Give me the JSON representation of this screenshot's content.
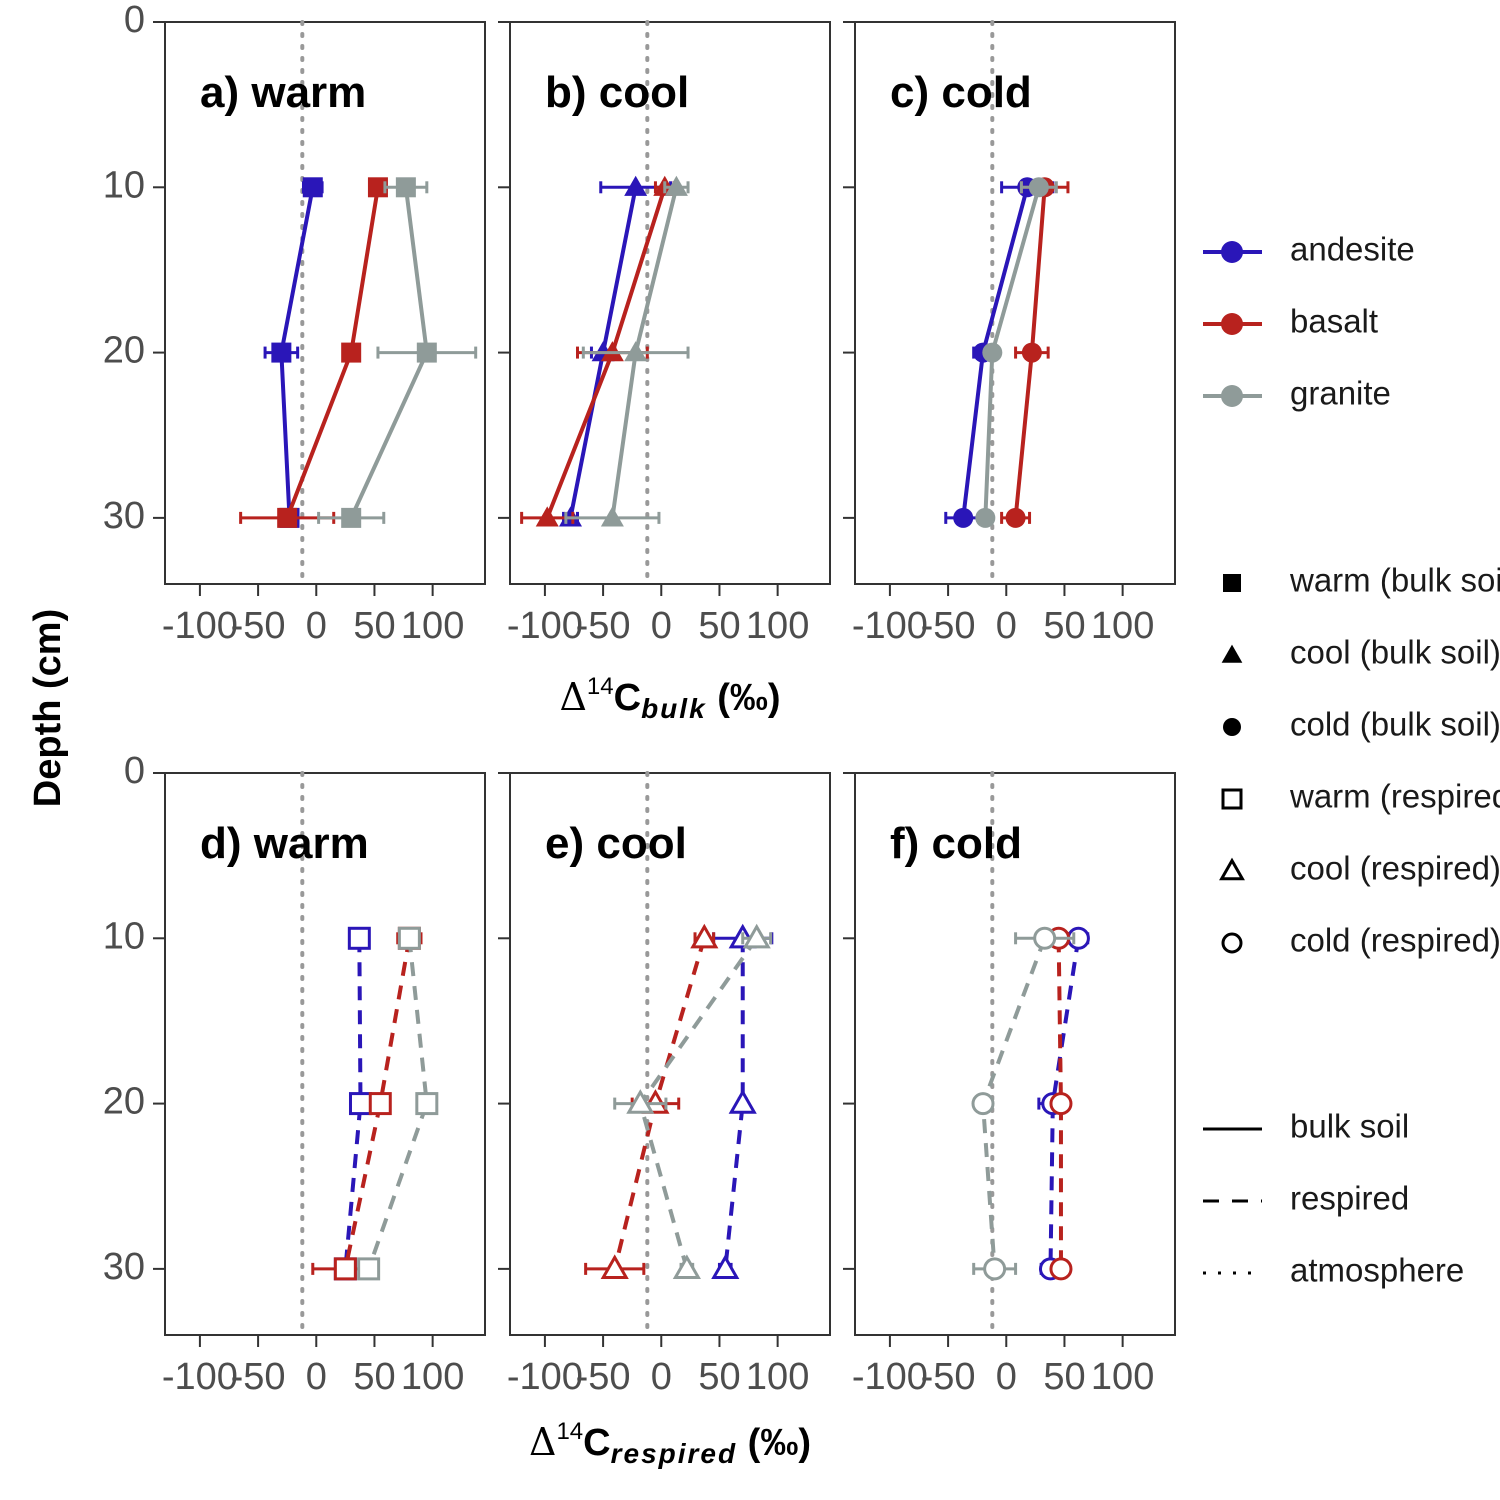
{
  "y_axis_label": "Depth (cm)",
  "x_axis_label_top": {
    "delta": "Δ",
    "sup": "14",
    "c": "C",
    "sub": "bulk",
    "unit": " (‰)"
  },
  "x_axis_label_bottom": {
    "delta": "Δ",
    "sup": "14",
    "c": "C",
    "sub": "respired",
    "unit": " (‰)"
  },
  "colors": {
    "andesite": "#2a16b8",
    "basalt": "#b8221e",
    "granite": "#8f9b99",
    "atmosphere": "#999999"
  },
  "legend": {
    "material": [
      {
        "label": "andesite",
        "color": "#2a16b8"
      },
      {
        "label": "basalt",
        "color": "#b8221e"
      },
      {
        "label": "granite",
        "color": "#8f9b99"
      }
    ],
    "shape": [
      {
        "label": "warm (bulk soil)",
        "shape": "square",
        "filled": true
      },
      {
        "label": "cool (bulk soil)",
        "shape": "triangle",
        "filled": true
      },
      {
        "label": "cold (bulk soil)",
        "shape": "circle",
        "filled": true
      },
      {
        "label": "warm (respired)",
        "shape": "square",
        "filled": false
      },
      {
        "label": "cool (respired)",
        "shape": "triangle",
        "filled": false
      },
      {
        "label": "cold (respired)",
        "shape": "circle",
        "filled": false
      }
    ],
    "linetype": [
      {
        "label": "bulk soil",
        "dash": "solid"
      },
      {
        "label": "respired",
        "dash": "dashed"
      },
      {
        "label": "atmosphere",
        "dash": "dotted"
      }
    ]
  },
  "chart_data": [
    {
      "id": "a",
      "title": "a) warm",
      "type": "line",
      "x_measure": "bulk",
      "marker": "square",
      "filled": true,
      "dash": "solid",
      "xlim": [
        -130,
        145
      ],
      "ylim": [
        34,
        0
      ],
      "xticks": [
        -100,
        -50,
        0,
        50,
        100
      ],
      "xtick_labels": [
        "-100",
        "-50",
        "0",
        "50",
        "100"
      ],
      "yticks": [
        0,
        10,
        20,
        30
      ],
      "ytick_labels": [
        "0",
        "10",
        "20",
        "30"
      ],
      "atmosphere_x": -12,
      "series": [
        {
          "name": "andesite",
          "x": [
            -3,
            -30,
            -23
          ],
          "y": [
            10,
            20,
            30
          ],
          "xerr": [
            8,
            14,
            6
          ]
        },
        {
          "name": "basalt",
          "x": [
            53,
            30,
            -25
          ],
          "y": [
            10,
            20,
            30
          ],
          "xerr": [
            5,
            4,
            40
          ]
        },
        {
          "name": "granite",
          "x": [
            77,
            95,
            30
          ],
          "y": [
            10,
            20,
            30
          ],
          "xerr": [
            18,
            42,
            28
          ]
        }
      ]
    },
    {
      "id": "b",
      "title": "b) cool",
      "type": "line",
      "x_measure": "bulk",
      "marker": "triangle",
      "filled": true,
      "dash": "solid",
      "xlim": [
        -130,
        145
      ],
      "ylim": [
        34,
        0
      ],
      "xticks": [
        -100,
        -50,
        0,
        50,
        100
      ],
      "xtick_labels": [
        "-100",
        "-50",
        "0",
        "50",
        "100"
      ],
      "yticks": [
        0,
        10,
        20,
        30
      ],
      "ytick_labels": [
        "0",
        "10",
        "20",
        "30"
      ],
      "atmosphere_x": -12,
      "series": [
        {
          "name": "andesite",
          "x": [
            -22,
            -50,
            -78
          ],
          "y": [
            10,
            20,
            30
          ],
          "xerr": [
            30,
            10,
            6
          ]
        },
        {
          "name": "basalt",
          "x": [
            3,
            -42,
            -98
          ],
          "y": [
            10,
            20,
            30
          ],
          "xerr": [
            8,
            30,
            22
          ]
        },
        {
          "name": "granite",
          "x": [
            13,
            -22,
            -42
          ],
          "y": [
            10,
            20,
            30
          ],
          "xerr": [
            10,
            45,
            40
          ]
        }
      ]
    },
    {
      "id": "c",
      "title": "c) cold",
      "type": "line",
      "x_measure": "bulk",
      "marker": "circle",
      "filled": true,
      "dash": "solid",
      "xlim": [
        -130,
        145
      ],
      "ylim": [
        34,
        0
      ],
      "xticks": [
        -100,
        -50,
        0,
        50,
        100
      ],
      "xtick_labels": [
        "-100",
        "-50",
        "0",
        "50",
        "100"
      ],
      "yticks": [
        0,
        10,
        20,
        30
      ],
      "ytick_labels": [
        "0",
        "10",
        "20",
        "30"
      ],
      "atmosphere_x": -12,
      "series": [
        {
          "name": "andesite",
          "x": [
            18,
            -20,
            -37
          ],
          "y": [
            10,
            20,
            30
          ],
          "xerr": [
            22,
            8,
            15
          ]
        },
        {
          "name": "basalt",
          "x": [
            33,
            22,
            8
          ],
          "y": [
            10,
            20,
            30
          ],
          "xerr": [
            20,
            14,
            12
          ]
        },
        {
          "name": "granite",
          "x": [
            28,
            -12,
            -18
          ],
          "y": [
            10,
            20,
            30
          ],
          "xerr": [
            15,
            5,
            5
          ]
        }
      ]
    },
    {
      "id": "d",
      "title": "d) warm",
      "type": "line",
      "x_measure": "respired",
      "marker": "square",
      "filled": false,
      "dash": "dashed",
      "xlim": [
        -130,
        145
      ],
      "ylim": [
        34,
        0
      ],
      "xticks": [
        -100,
        -50,
        0,
        50,
        100
      ],
      "xtick_labels": [
        "-100",
        "-50",
        "0",
        "50",
        "100"
      ],
      "yticks": [
        0,
        10,
        20,
        30
      ],
      "ytick_labels": [
        "0",
        "10",
        "20",
        "30"
      ],
      "atmosphere_x": -12,
      "series": [
        {
          "name": "andesite",
          "x": [
            37,
            38,
            25
          ],
          "y": [
            10,
            20,
            30
          ],
          "xerr": [
            8,
            6,
            8
          ]
        },
        {
          "name": "basalt",
          "x": [
            80,
            55,
            25
          ],
          "y": [
            10,
            20,
            30
          ],
          "xerr": [
            10,
            8,
            28
          ]
        },
        {
          "name": "granite",
          "x": [
            80,
            95,
            45
          ],
          "y": [
            10,
            20,
            30
          ],
          "xerr": [
            8,
            5,
            6
          ]
        }
      ]
    },
    {
      "id": "e",
      "title": "e) cool",
      "type": "line",
      "x_measure": "respired",
      "marker": "triangle",
      "filled": false,
      "dash": "dashed",
      "xlim": [
        -130,
        145
      ],
      "ylim": [
        34,
        0
      ],
      "xticks": [
        -100,
        -50,
        0,
        50,
        100
      ],
      "xtick_labels": [
        "-100",
        "-50",
        "0",
        "50",
        "100"
      ],
      "yticks": [
        0,
        10,
        20,
        30
      ],
      "ytick_labels": [
        "0",
        "10",
        "20",
        "30"
      ],
      "atmosphere_x": -12,
      "series": [
        {
          "name": "andesite",
          "x": [
            70,
            70,
            55
          ],
          "y": [
            10,
            20,
            30
          ],
          "xerr": [
            25,
            3,
            5
          ]
        },
        {
          "name": "basalt",
          "x": [
            37,
            -5,
            -40
          ],
          "y": [
            10,
            20,
            30
          ],
          "xerr": [
            8,
            20,
            25
          ]
        },
        {
          "name": "granite",
          "x": [
            82,
            -18,
            22
          ],
          "y": [
            10,
            20,
            30
          ],
          "xerr": [
            12,
            22,
            5
          ]
        }
      ]
    },
    {
      "id": "f",
      "title": "f) cold",
      "type": "line",
      "x_measure": "respired",
      "marker": "circle",
      "filled": false,
      "dash": "dashed",
      "xlim": [
        -130,
        145
      ],
      "ylim": [
        34,
        0
      ],
      "xticks": [
        -100,
        -50,
        0,
        50,
        100
      ],
      "xtick_labels": [
        "-100",
        "-50",
        "0",
        "50",
        "100"
      ],
      "yticks": [
        0,
        10,
        20,
        30
      ],
      "ytick_labels": [
        "0",
        "10",
        "20",
        "30"
      ],
      "atmosphere_x": -12,
      "series": [
        {
          "name": "andesite",
          "x": [
            62,
            40,
            38
          ],
          "y": [
            10,
            20,
            30
          ],
          "xerr": [
            8,
            12,
            8
          ]
        },
        {
          "name": "basalt",
          "x": [
            45,
            47,
            47
          ],
          "y": [
            10,
            20,
            30
          ],
          "xerr": [
            8,
            6,
            5
          ]
        },
        {
          "name": "granite",
          "x": [
            33,
            -20,
            -10
          ],
          "y": [
            10,
            20,
            30
          ],
          "xerr": [
            25,
            5,
            18
          ]
        }
      ]
    }
  ]
}
